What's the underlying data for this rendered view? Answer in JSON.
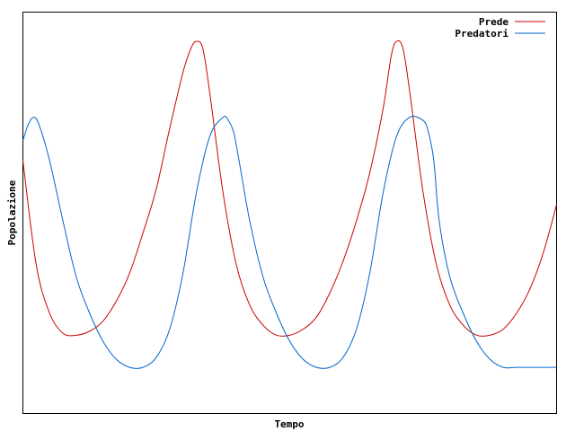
{
  "chart_data": {
    "type": "line",
    "title": "",
    "xlabel": "Tempo",
    "ylabel": "Popolazione",
    "xlim": [
      0,
      100
    ],
    "ylim": [
      0,
      100
    ],
    "grid": false,
    "legend_position": "top-right",
    "ticks": "none",
    "series": [
      {
        "name": "Prede",
        "color": "#cc0000",
        "x": [
          0,
          2.5,
          5,
          7.5,
          10,
          12.5,
          15,
          17.5,
          20,
          22.5,
          25,
          27.5,
          30,
          31.5,
          32.5,
          33.7,
          35,
          37.5,
          40,
          42.5,
          45,
          47.5,
          50,
          52.5,
          55,
          57.5,
          60,
          62.5,
          65,
          67.5,
          69,
          70,
          71.2,
          72.5,
          75,
          77.5,
          80,
          82.5,
          85,
          87.5,
          90,
          92.5,
          95,
          97.5,
          100
        ],
        "values": [
          63,
          37,
          25,
          20,
          19.5,
          20.5,
          23,
          28,
          35,
          45,
          56,
          71,
          85,
          91,
          92.7,
          91,
          80,
          55,
          37,
          27,
          22,
          19.5,
          19.5,
          21,
          24,
          30,
          38,
          48,
          60,
          76,
          89,
          92.7,
          91,
          80,
          55,
          37,
          27,
          22,
          19.5,
          19.5,
          21,
          25,
          31,
          40,
          52
        ]
      },
      {
        "name": "Predatori",
        "color": "#0066cc",
        "x": [
          0,
          1,
          2,
          3,
          5,
          7.5,
          10,
          12.5,
          15,
          17.5,
          20,
          22.5,
          25,
          27.5,
          30,
          32.5,
          35,
          37.5,
          38.5,
          39.5,
          40.5,
          42.5,
          45,
          47.5,
          50,
          52.5,
          55,
          57.5,
          60,
          62.5,
          65,
          67.5,
          70,
          72.5,
          75,
          76,
          77,
          78,
          80,
          82.5,
          85,
          87.5,
          90,
          92.5,
          95,
          97.5,
          100
        ],
        "values": [
          68,
          72,
          73.8,
          72,
          63,
          48,
          34,
          25,
          18,
          13.5,
          11.5,
          11.5,
          14,
          21,
          35,
          55,
          69,
          73.8,
          73,
          70,
          63,
          48,
          34,
          25,
          18,
          13.5,
          11.5,
          11.5,
          14,
          21,
          35,
          55,
          69,
          73.8,
          73,
          70,
          63,
          48,
          34,
          25,
          18,
          13.5,
          11.5,
          11.5,
          11.5,
          11.5,
          11.5
        ]
      }
    ]
  }
}
